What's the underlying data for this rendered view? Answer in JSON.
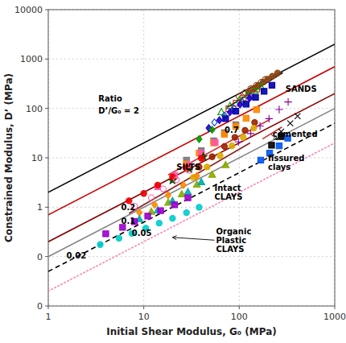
{
  "chart_data": {
    "type": "scatter",
    "log": true,
    "grid": true,
    "xlabel": "Initial Shear Modulus, G₀ (MPa)",
    "ylabel": "Constrained Modulus, D’ (MPa)",
    "xlim": [
      1,
      1000
    ],
    "ylim": [
      0.01,
      10000
    ],
    "xticks": [
      1,
      10,
      100,
      1000
    ],
    "yticks": [
      {
        "value": 0.01,
        "label": "0"
      },
      {
        "value": 0.1,
        "label": "0"
      },
      1,
      10,
      100,
      1000,
      10000
    ],
    "series": [
      {
        "type": "line",
        "color": "#000000",
        "line_style": "solid",
        "x": [
          1,
          1000
        ],
        "values": [
          2,
          2000
        ]
      },
      {
        "type": "line",
        "color": "#cc0000",
        "line_style": "solid",
        "x": [
          1,
          1000
        ],
        "values": [
          0.7,
          700
        ]
      },
      {
        "type": "line",
        "color": "#880000",
        "line_style": "solid",
        "x": [
          1,
          1000
        ],
        "values": [
          0.2,
          200
        ]
      },
      {
        "type": "line",
        "color": "#888888",
        "line_style": "solid",
        "x": [
          1,
          1000
        ],
        "values": [
          0.1,
          100
        ]
      },
      {
        "type": "line",
        "color": "#000000",
        "line_style": "dashed",
        "x": [
          1,
          1000
        ],
        "values": [
          0.05,
          50
        ]
      },
      {
        "type": "line",
        "color": "#ff80b0",
        "line_style": "dotted",
        "x": [
          1,
          1000
        ],
        "values": [
          0.02,
          20
        ]
      },
      {
        "type": "line",
        "color": "#000000",
        "line_style": "solid",
        "x": [
          75,
          285
        ],
        "values": [
          105,
          530
        ]
      },
      {
        "type": "line",
        "color": "#cc3333",
        "line_style": "solid",
        "x": [
          18,
          210
        ],
        "values": [
          4.5,
          60
        ]
      },
      {
        "type": "line",
        "color": "#882222",
        "line_style": "solid",
        "x": [
          7,
          130
        ],
        "values": [
          0.75,
          20
        ]
      },
      {
        "type": "line",
        "color": "#cc3333",
        "line_style": "solid",
        "x": [
          175,
          280
        ],
        "values": [
          24,
          42
        ]
      },
      {
        "type": "scatter",
        "marker": "circle",
        "color": "#8B4513",
        "x": [
          125,
          142,
          158,
          178,
          198,
          222,
          252
        ],
        "values": [
          215,
          250,
          290,
          340,
          390,
          450,
          520
        ]
      },
      {
        "type": "scatter",
        "marker": "open-circle",
        "color": "#8B4513",
        "x": [
          100,
          116,
          132,
          152,
          170,
          188
        ],
        "values": [
          175,
          210,
          250,
          295,
          340,
          385
        ]
      },
      {
        "type": "scatter",
        "marker": "open-square",
        "color": "#dd1111",
        "x": [
          78,
          93,
          110,
          132,
          152
        ],
        "values": [
          98,
          128,
          162,
          205,
          248
        ]
      },
      {
        "type": "scatter",
        "marker": "open-triangle",
        "color": "#009900",
        "x": [
          65,
          80,
          100,
          122,
          145,
          168
        ],
        "values": [
          85,
          113,
          148,
          188,
          230,
          278
        ]
      },
      {
        "type": "scatter",
        "marker": "open-diamond",
        "color": "#0044dd",
        "x": [
          55,
          70,
          88,
          108,
          132
        ],
        "values": [
          52,
          72,
          100,
          135,
          172
        ]
      },
      {
        "type": "scatter",
        "marker": "square",
        "color": "#0000aa",
        "x": [
          72,
          92,
          118,
          148,
          182,
          220
        ],
        "values": [
          62,
          88,
          122,
          168,
          222,
          295
        ]
      },
      {
        "type": "scatter",
        "marker": "diamond",
        "color": "#2200cc",
        "x": [
          48,
          62,
          80,
          102,
          128
        ],
        "values": [
          40,
          58,
          84,
          120,
          162
        ]
      },
      {
        "type": "scatter",
        "marker": "plus",
        "color": "#880099",
        "x": [
          98,
          132,
          165,
          205,
          262,
          325
        ],
        "values": [
          21,
          31,
          44,
          62,
          95,
          135
        ]
      },
      {
        "type": "scatter",
        "marker": "diamond",
        "color": "#009900",
        "x": [
          38,
          52
        ],
        "values": [
          24,
          37
        ]
      },
      {
        "type": "scatter",
        "marker": "square",
        "color": "#777777",
        "x": [
          28,
          40,
          54,
          70,
          92
        ],
        "values": [
          9,
          14,
          22,
          32,
          47
        ]
      },
      {
        "type": "scatter",
        "marker": "square",
        "color": "#ff8800",
        "x": [
          28,
          38,
          54,
          70,
          92,
          118,
          152
        ],
        "values": [
          7.5,
          12.5,
          20,
          30,
          43,
          63,
          95
        ]
      },
      {
        "type": "scatter",
        "marker": "circle",
        "color": "#992200",
        "x": [
          38,
          52,
          70,
          90,
          115,
          145
        ],
        "values": [
          6.5,
          10.5,
          17,
          26,
          36,
          52
        ]
      },
      {
        "type": "scatter",
        "marker": "circle",
        "color": "#ddaa00",
        "x": [
          33,
          46,
          63,
          84,
          110,
          142
        ],
        "values": [
          4.0,
          6.5,
          11,
          17.5,
          26,
          40
        ]
      },
      {
        "type": "scatter",
        "marker": "square",
        "color": "#ff55aa",
        "x": [
          14,
          21,
          30,
          40,
          56
        ],
        "values": [
          2.6,
          4.4,
          7.2,
          12.5,
          20.5
        ]
      },
      {
        "type": "scatter",
        "marker": "star",
        "color": "#004400",
        "x": [
          20,
          30,
          42
        ],
        "values": [
          3.5,
          6.0,
          10.5
        ]
      },
      {
        "type": "scatter",
        "marker": "circle",
        "color": "#ee0000",
        "x": [
          7,
          10,
          14,
          20,
          28,
          40
        ],
        "values": [
          1.35,
          1.9,
          2.8,
          4.1,
          6.2,
          9.8
        ]
      },
      {
        "type": "scatter",
        "marker": "open-circle",
        "color": "#ff66aa",
        "x": [
          8,
          12,
          16,
          22,
          30
        ],
        "values": [
          1.05,
          1.55,
          2.35,
          3.6,
          5.6
        ]
      },
      {
        "type": "scatter",
        "marker": "diamond",
        "color": "#ff8800",
        "x": [
          9,
          13,
          18,
          26,
          36
        ],
        "values": [
          0.78,
          1.12,
          1.75,
          2.8,
          4.3
        ]
      },
      {
        "type": "scatter",
        "marker": "triangle",
        "color": "#88aa00",
        "x": [
          12,
          18,
          25,
          36,
          52,
          72
        ],
        "values": [
          0.82,
          1.25,
          1.85,
          2.9,
          4.6,
          7.2
        ]
      },
      {
        "type": "scatter",
        "marker": "triangle",
        "color": "#00aaaa",
        "x": [
          9,
          14,
          20,
          29,
          40
        ],
        "values": [
          0.58,
          0.88,
          1.35,
          2.05,
          3.25
        ]
      },
      {
        "type": "scatter",
        "marker": "square",
        "color": "#9900cc",
        "x": [
          4,
          6,
          8,
          11,
          15,
          21,
          29
        ],
        "values": [
          0.29,
          0.39,
          0.51,
          0.66,
          0.85,
          1.12,
          1.55
        ]
      },
      {
        "type": "scatter",
        "marker": "circle",
        "color": "#00cccc",
        "x": [
          3.5,
          5.5,
          7.5,
          10.5,
          14.5,
          20,
          28,
          38
        ],
        "values": [
          0.175,
          0.235,
          0.295,
          0.375,
          0.475,
          0.595,
          0.775,
          0.995
        ]
      },
      {
        "type": "scatter",
        "marker": "square",
        "color": "#000000",
        "x": [
          218,
          275
        ],
        "values": [
          18,
          27
        ]
      },
      {
        "type": "scatter",
        "marker": "square",
        "color": "#0055ee",
        "x": [
          168,
          208,
          262,
          322
        ],
        "values": [
          9,
          12.5,
          17.5,
          25
        ]
      },
      {
        "type": "scatter",
        "marker": "x",
        "color": "#000000",
        "x": [
          275,
          342,
          408
        ],
        "values": [
          34,
          50,
          70
        ]
      }
    ],
    "annotations": [
      {
        "text": "Ratio"
      },
      {
        "text": "D’/G₀ = 2"
      },
      {
        "text": "0.7",
        "x": 70,
        "y": 36
      },
      {
        "text": "0.2",
        "x": 5.8,
        "y": 1.0
      },
      {
        "text": "0.1",
        "x": 5.8,
        "y": 0.53
      },
      {
        "text": "0.05",
        "x": 7.5,
        "y": 0.295
      },
      {
        "text": "0.02",
        "x": 1.55,
        "y": 0.105
      },
      {
        "text": "SANDS",
        "x": 305,
        "y": 245
      },
      {
        "text": "SILTS",
        "x": 22,
        "y": 6.5
      },
      {
        "text": "Intact\nCLAYS",
        "x": 55,
        "y": 2.0
      },
      {
        "text": "cemented",
        "x": 215,
        "y": 30,
        "arrow_x": 252,
        "arrow_y": 23
      },
      {
        "text": "fissured\nclays",
        "x": 200,
        "y": 8.0
      },
      {
        "text": "Organic\nPlastic\nCLAYS",
        "x": 55,
        "y": 0.215,
        "arrow_x": 20,
        "arrow_y": 0.245
      }
    ]
  }
}
